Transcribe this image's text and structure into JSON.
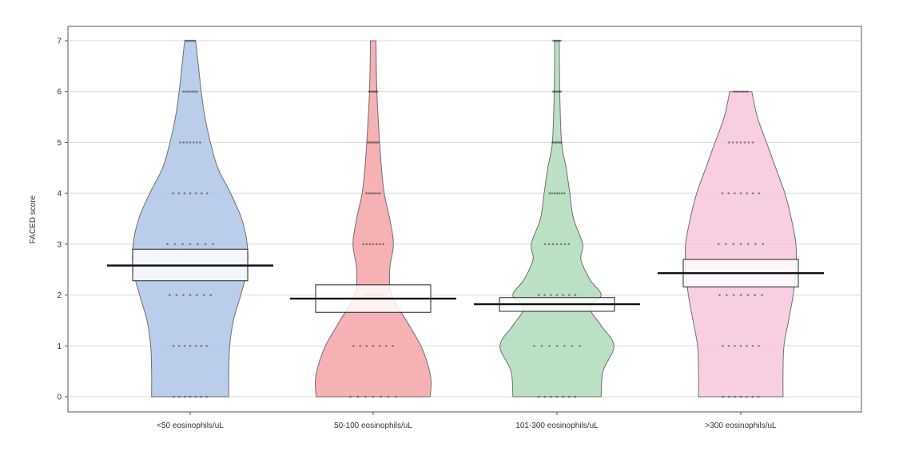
{
  "chart_data": {
    "type": "violin",
    "title": "",
    "xlabel": "",
    "ylabel": "FACED score",
    "ylim": [
      0,
      7
    ],
    "yticks": [
      0,
      1,
      2,
      3,
      4,
      5,
      6,
      7
    ],
    "grid": true,
    "categories": [
      "<50 eosinophils/uL",
      "50-100 eosinophils/uL",
      "101-300 eosinophils/uL",
      ">300 eosinophils/uL"
    ],
    "series": [
      {
        "color": "#aec6e8",
        "mean": 2.58,
        "ci": [
          2.28,
          2.9
        ],
        "max": 7,
        "density": [
          [
            0,
            0.42
          ],
          [
            0.5,
            0.42
          ],
          [
            1,
            0.43
          ],
          [
            1.5,
            0.47
          ],
          [
            2,
            0.55
          ],
          [
            2.5,
            0.62
          ],
          [
            3,
            0.62
          ],
          [
            3.5,
            0.56
          ],
          [
            4,
            0.44
          ],
          [
            4.5,
            0.3
          ],
          [
            5,
            0.22
          ],
          [
            5.5,
            0.16
          ],
          [
            6,
            0.12
          ],
          [
            6.5,
            0.09
          ],
          [
            7,
            0.06
          ]
        ],
        "points": [
          0,
          1,
          2,
          3,
          4,
          5,
          6,
          7
        ]
      },
      {
        "color": "#f4a3a8",
        "mean": 1.93,
        "ci": [
          1.66,
          2.2
        ],
        "max": 7,
        "density": [
          [
            0,
            0.62
          ],
          [
            0.3,
            0.63
          ],
          [
            0.6,
            0.6
          ],
          [
            1,
            0.52
          ],
          [
            1.5,
            0.36
          ],
          [
            2,
            0.2
          ],
          [
            2.5,
            0.18
          ],
          [
            3,
            0.22
          ],
          [
            3.5,
            0.18
          ],
          [
            4,
            0.12
          ],
          [
            4.5,
            0.09
          ],
          [
            5,
            0.07
          ],
          [
            6,
            0.04
          ],
          [
            7,
            0.03
          ]
        ],
        "points": [
          0,
          1,
          2,
          3,
          4,
          5,
          6
        ]
      },
      {
        "color": "#b0dab8",
        "mean": 1.82,
        "ci": [
          1.68,
          1.95
        ],
        "max": 7,
        "density": [
          [
            0,
            0.48
          ],
          [
            0.5,
            0.5
          ],
          [
            1,
            0.62
          ],
          [
            1.4,
            0.48
          ],
          [
            1.75,
            0.36
          ],
          [
            2,
            0.48
          ],
          [
            2.3,
            0.36
          ],
          [
            2.7,
            0.26
          ],
          [
            3,
            0.28
          ],
          [
            3.5,
            0.18
          ],
          [
            4,
            0.14
          ],
          [
            4.5,
            0.1
          ],
          [
            5,
            0.05
          ],
          [
            6,
            0.03
          ],
          [
            7,
            0.025
          ]
        ],
        "points": [
          0,
          1,
          2,
          3,
          4,
          5,
          6,
          7
        ]
      },
      {
        "color": "#f7c6dd",
        "mean": 2.43,
        "ci": [
          2.16,
          2.7
        ],
        "max": 6,
        "density": [
          [
            0,
            0.46
          ],
          [
            0.5,
            0.46
          ],
          [
            1,
            0.47
          ],
          [
            1.5,
            0.52
          ],
          [
            2,
            0.57
          ],
          [
            2.5,
            0.6
          ],
          [
            3,
            0.6
          ],
          [
            3.5,
            0.55
          ],
          [
            4,
            0.48
          ],
          [
            4.5,
            0.38
          ],
          [
            5,
            0.28
          ],
          [
            5.5,
            0.18
          ],
          [
            6,
            0.12
          ]
        ],
        "points": [
          0,
          1,
          2,
          3,
          4,
          5,
          6
        ]
      }
    ]
  }
}
